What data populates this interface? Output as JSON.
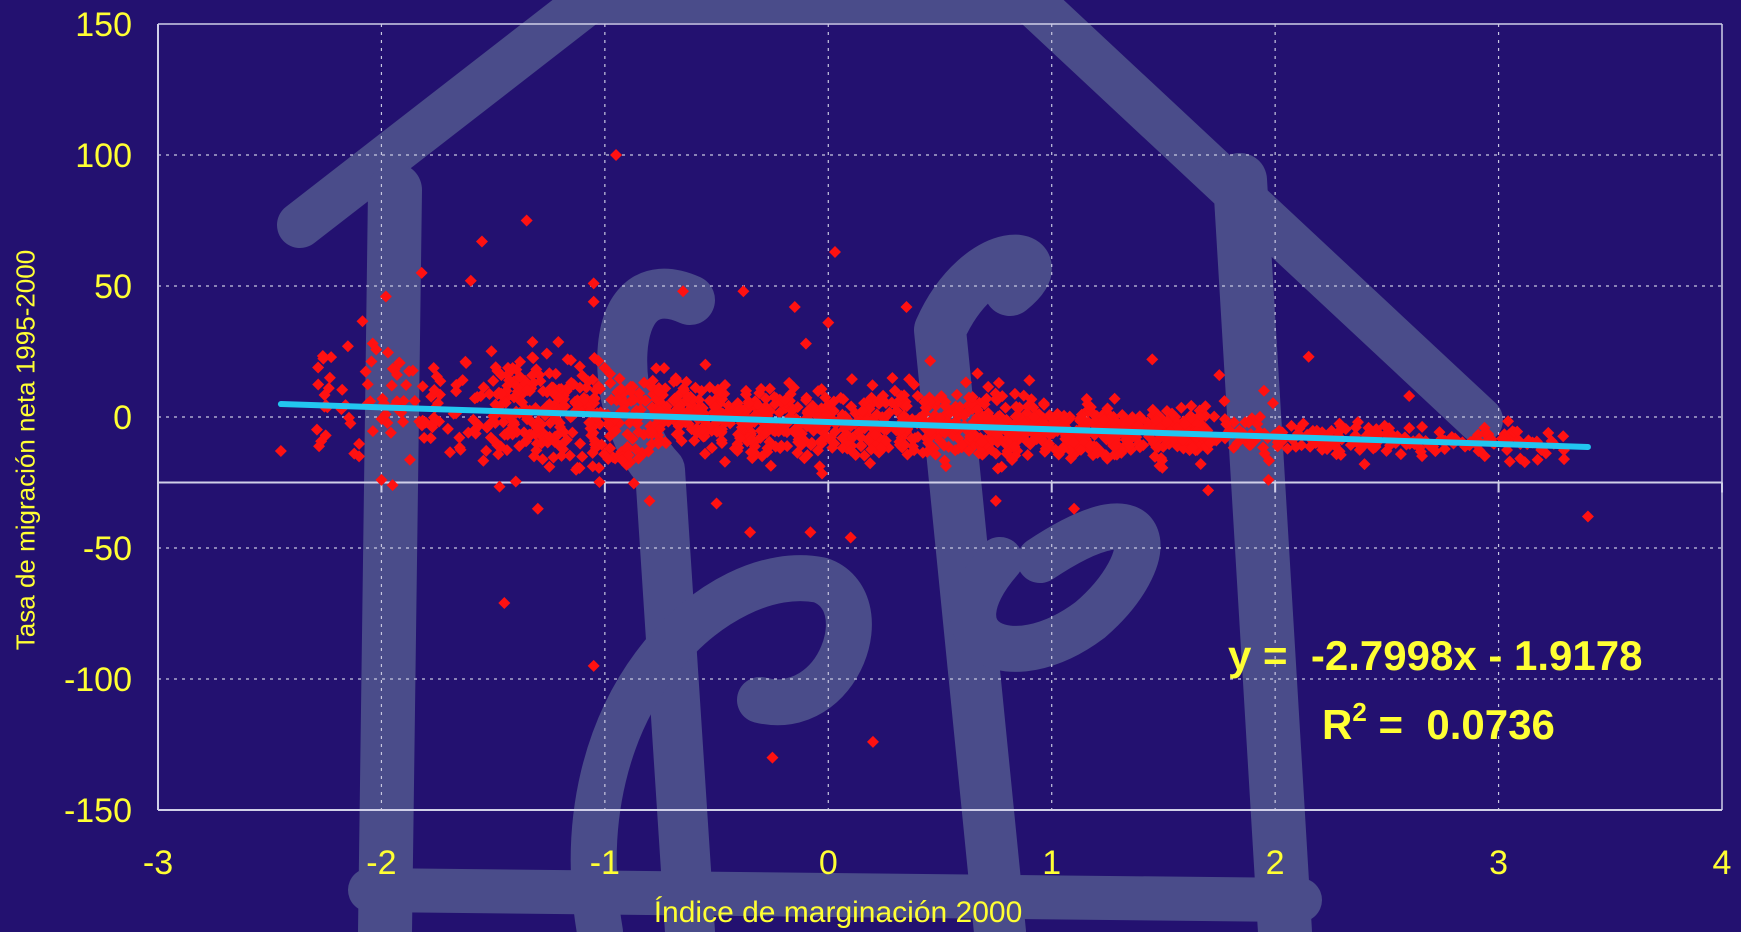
{
  "colors": {
    "background": "#231170",
    "watermark": "#4a4c8a",
    "grid": "#c8c8e0",
    "axis_text": "#ffff33",
    "points": "#ff1111",
    "trendline": "#22c6f0"
  },
  "chart_data": {
    "type": "scatter",
    "xlabel": "Índice de marginación 2000",
    "ylabel": "Tasa de migración neta 1995-2000",
    "xlim": [
      -3,
      4
    ],
    "ylim": [
      -150,
      150
    ],
    "x_ticks": [
      "-3",
      "-2",
      "-1",
      "0",
      "1",
      "2",
      "3",
      "4"
    ],
    "y_ticks": [
      "150",
      "100",
      "50",
      "0",
      "-50",
      "-100",
      "-150"
    ],
    "grid": true,
    "marker": "diamond",
    "trendline": {
      "type": "linear",
      "slope": -2.7998,
      "intercept": -1.9178,
      "x_range": [
        -2.45,
        3.4
      ],
      "equation_text": "y =  -2.7998x - 1.9178",
      "r2_label": "R",
      "r2_sup": "2",
      "r2_text": " =  0.0736"
    },
    "outliers": [
      {
        "x": -0.95,
        "y": 100
      },
      {
        "x": 0.03,
        "y": 63
      },
      {
        "x": -1.35,
        "y": 75
      },
      {
        "x": -1.55,
        "y": 67
      },
      {
        "x": -1.82,
        "y": 55
      },
      {
        "x": -1.98,
        "y": 46
      },
      {
        "x": -0.38,
        "y": 48
      },
      {
        "x": -0.65,
        "y": 48
      },
      {
        "x": 0.35,
        "y": 42
      },
      {
        "x": -0.15,
        "y": 42
      },
      {
        "x": 2.15,
        "y": 23
      },
      {
        "x": 1.45,
        "y": 22
      },
      {
        "x": -2.15,
        "y": 27
      },
      {
        "x": -2.45,
        "y": -13
      },
      {
        "x": -1.3,
        "y": -35
      },
      {
        "x": -0.5,
        "y": -33
      },
      {
        "x": -1.45,
        "y": -71
      },
      {
        "x": -1.05,
        "y": -95
      },
      {
        "x": -0.25,
        "y": -130
      },
      {
        "x": 0.2,
        "y": -124
      },
      {
        "x": 0.1,
        "y": -46
      },
      {
        "x": -0.08,
        "y": -44
      },
      {
        "x": -0.35,
        "y": -44
      },
      {
        "x": 1.1,
        "y": -35
      },
      {
        "x": 3.4,
        "y": -38
      },
      {
        "x": 3.05,
        "y": -17
      },
      {
        "x": 2.4,
        "y": -18
      },
      {
        "x": 1.97,
        "y": -24
      },
      {
        "x": 1.7,
        "y": -28
      },
      {
        "x": 0.75,
        "y": -32
      },
      {
        "x": -0.8,
        "y": -32
      },
      {
        "x": -2.0,
        "y": -24
      },
      {
        "x": -1.95,
        "y": -26
      },
      {
        "x": 2.6,
        "y": 8
      },
      {
        "x": 1.95,
        "y": 10
      },
      {
        "x": 1.75,
        "y": 16
      },
      {
        "x": 0.9,
        "y": 14
      },
      {
        "x": 0.0,
        "y": 36
      },
      {
        "x": -0.1,
        "y": 28
      },
      {
        "x": -0.55,
        "y": 20
      },
      {
        "x": -1.6,
        "y": 52
      },
      {
        "x": -1.05,
        "y": 44
      },
      {
        "x": -1.05,
        "y": 51
      }
    ],
    "cluster": {
      "x_range": [
        -2.3,
        3.3
      ],
      "n_points": 1600,
      "spread_note": "dense cloud along trendline, wider spread on the left"
    }
  }
}
